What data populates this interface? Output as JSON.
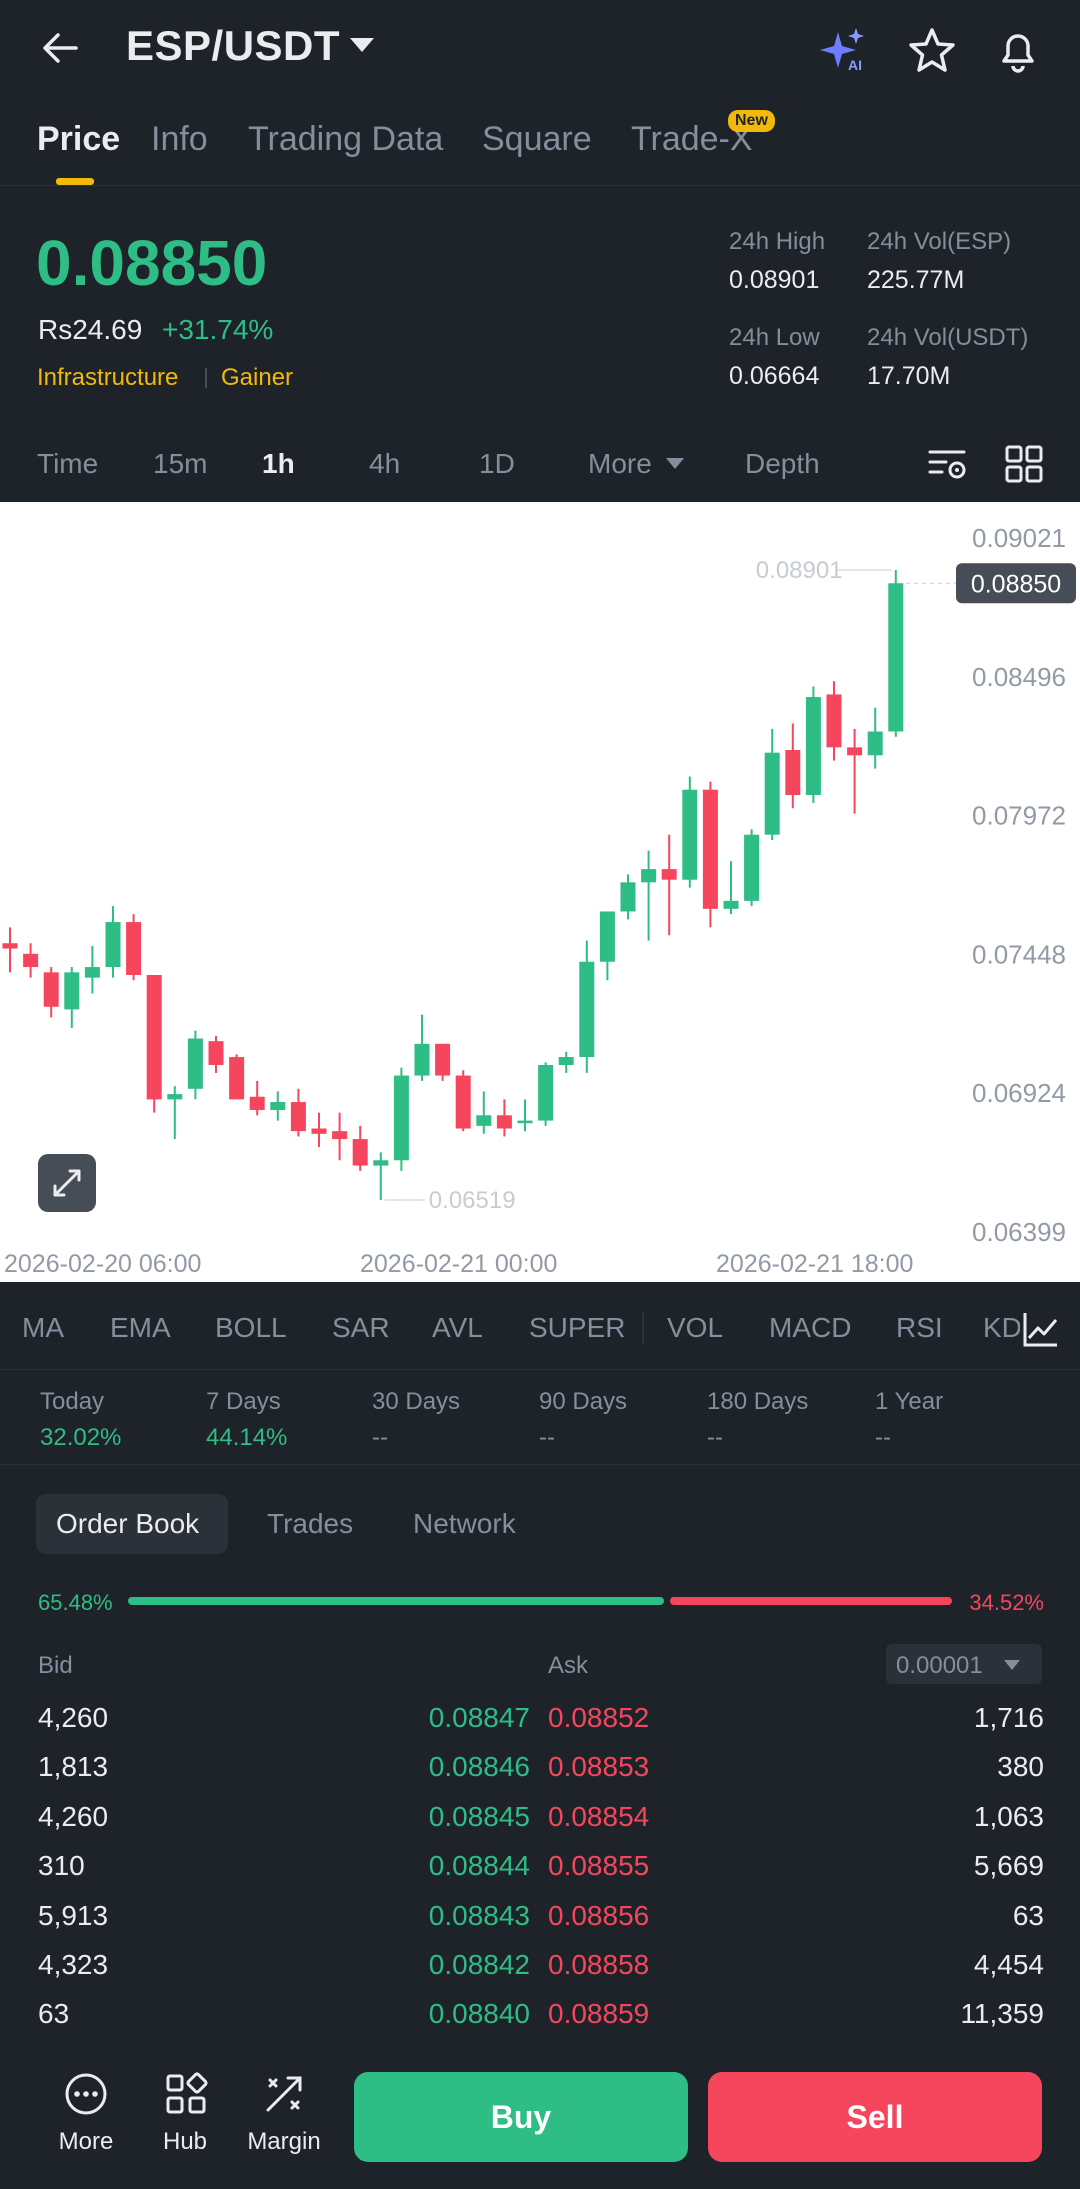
{
  "header": {
    "pair": "ESP/USDT",
    "icons": [
      "back-arrow-icon",
      "ai-sparkle-icon",
      "star-icon",
      "bell-icon"
    ]
  },
  "tabs": [
    {
      "label": "Price",
      "active": true
    },
    {
      "label": "Info"
    },
    {
      "label": "Trading Data"
    },
    {
      "label": "Square"
    },
    {
      "label": "Trade-X",
      "badge": "New"
    }
  ],
  "ticker": {
    "last_price": "0.08850",
    "fiat_price": "Rs24.69",
    "change_pct": "+31.74%",
    "tags": [
      "Infrastructure",
      "Gainer"
    ],
    "high_label": "24h High",
    "high": "0.08901",
    "vol_base_label": "24h Vol(ESP)",
    "vol_base": "225.77M",
    "low_label": "24h Low",
    "low": "0.06664",
    "vol_quote_label": "24h Vol(USDT)",
    "vol_quote": "17.70M"
  },
  "timeframes": [
    {
      "label": "Time"
    },
    {
      "label": "15m"
    },
    {
      "label": "1h",
      "active": true
    },
    {
      "label": "4h"
    },
    {
      "label": "1D"
    },
    {
      "label": "More"
    },
    {
      "label": "Depth"
    }
  ],
  "chart_data": {
    "type": "candlestick",
    "interval": "1h",
    "y_ticks": [
      "0.09021",
      "0.08496",
      "0.07972",
      "0.07448",
      "0.06924",
      "0.06399"
    ],
    "x_ticks": [
      "2026-02-20 06:00",
      "2026-02-21 00:00",
      "2026-02-21 18:00"
    ],
    "last_price_label": "0.08850",
    "high_marker": "0.08901",
    "low_marker": "0.06519",
    "ylim": [
      0.06399,
      0.09021
    ],
    "candles": [
      {
        "o": 0.0749,
        "h": 0.0755,
        "l": 0.0738,
        "c": 0.0747
      },
      {
        "o": 0.0745,
        "h": 0.0749,
        "l": 0.0736,
        "c": 0.074
      },
      {
        "o": 0.0738,
        "h": 0.074,
        "l": 0.0721,
        "c": 0.0725
      },
      {
        "o": 0.0724,
        "h": 0.074,
        "l": 0.0717,
        "c": 0.0738
      },
      {
        "o": 0.0736,
        "h": 0.0748,
        "l": 0.073,
        "c": 0.074
      },
      {
        "o": 0.074,
        "h": 0.0763,
        "l": 0.0736,
        "c": 0.0757
      },
      {
        "o": 0.0757,
        "h": 0.076,
        "l": 0.0735,
        "c": 0.0737
      },
      {
        "o": 0.0737,
        "h": 0.0737,
        "l": 0.0685,
        "c": 0.069
      },
      {
        "o": 0.069,
        "h": 0.0695,
        "l": 0.0675,
        "c": 0.0692
      },
      {
        "o": 0.0694,
        "h": 0.0716,
        "l": 0.069,
        "c": 0.0713
      },
      {
        "o": 0.0712,
        "h": 0.0714,
        "l": 0.07,
        "c": 0.0703
      },
      {
        "o": 0.0706,
        "h": 0.0707,
        "l": 0.069,
        "c": 0.069
      },
      {
        "o": 0.0691,
        "h": 0.0697,
        "l": 0.0684,
        "c": 0.0686
      },
      {
        "o": 0.0686,
        "h": 0.0693,
        "l": 0.0682,
        "c": 0.0689
      },
      {
        "o": 0.0689,
        "h": 0.0694,
        "l": 0.0676,
        "c": 0.0678
      },
      {
        "o": 0.0679,
        "h": 0.0685,
        "l": 0.0672,
        "c": 0.0677
      },
      {
        "o": 0.0678,
        "h": 0.0685,
        "l": 0.0667,
        "c": 0.0675
      },
      {
        "o": 0.0675,
        "h": 0.068,
        "l": 0.0663,
        "c": 0.0665
      },
      {
        "o": 0.0665,
        "h": 0.067,
        "l": 0.0652,
        "c": 0.0667
      },
      {
        "o": 0.0667,
        "h": 0.0702,
        "l": 0.0663,
        "c": 0.0699
      },
      {
        "o": 0.0699,
        "h": 0.0722,
        "l": 0.0697,
        "c": 0.0711
      },
      {
        "o": 0.0711,
        "h": 0.0711,
        "l": 0.0697,
        "c": 0.0699
      },
      {
        "o": 0.0699,
        "h": 0.0701,
        "l": 0.0678,
        "c": 0.0679
      },
      {
        "o": 0.068,
        "h": 0.0693,
        "l": 0.0677,
        "c": 0.0684
      },
      {
        "o": 0.0684,
        "h": 0.069,
        "l": 0.0676,
        "c": 0.0679
      },
      {
        "o": 0.0681,
        "h": 0.069,
        "l": 0.0678,
        "c": 0.0682
      },
      {
        "o": 0.0682,
        "h": 0.0704,
        "l": 0.068,
        "c": 0.0703
      },
      {
        "o": 0.0703,
        "h": 0.0708,
        "l": 0.07,
        "c": 0.0706
      },
      {
        "o": 0.0706,
        "h": 0.075,
        "l": 0.07,
        "c": 0.0742
      },
      {
        "o": 0.0742,
        "h": 0.0761,
        "l": 0.0735,
        "c": 0.0761
      },
      {
        "o": 0.0761,
        "h": 0.0775,
        "l": 0.0758,
        "c": 0.0772
      },
      {
        "o": 0.0772,
        "h": 0.0784,
        "l": 0.075,
        "c": 0.0777
      },
      {
        "o": 0.0777,
        "h": 0.079,
        "l": 0.0752,
        "c": 0.0773
      },
      {
        "o": 0.0773,
        "h": 0.0812,
        "l": 0.077,
        "c": 0.0807
      },
      {
        "o": 0.0807,
        "h": 0.081,
        "l": 0.0755,
        "c": 0.0762
      },
      {
        "o": 0.0762,
        "h": 0.078,
        "l": 0.076,
        "c": 0.0765
      },
      {
        "o": 0.0765,
        "h": 0.0792,
        "l": 0.0763,
        "c": 0.079
      },
      {
        "o": 0.079,
        "h": 0.083,
        "l": 0.0788,
        "c": 0.0821
      },
      {
        "o": 0.0822,
        "h": 0.0832,
        "l": 0.08,
        "c": 0.0805
      },
      {
        "o": 0.0805,
        "h": 0.0846,
        "l": 0.0802,
        "c": 0.0842
      },
      {
        "o": 0.0843,
        "h": 0.0848,
        "l": 0.0818,
        "c": 0.0823
      },
      {
        "o": 0.0823,
        "h": 0.083,
        "l": 0.0798,
        "c": 0.082
      },
      {
        "o": 0.082,
        "h": 0.0838,
        "l": 0.0815,
        "c": 0.0829
      },
      {
        "o": 0.0829,
        "h": 0.089,
        "l": 0.0827,
        "c": 0.0885
      }
    ]
  },
  "indicators": [
    "MA",
    "EMA",
    "BOLL",
    "SAR",
    "AVL",
    "SUPER",
    "VOL",
    "MACD",
    "RSI",
    "KD"
  ],
  "performance": [
    {
      "label": "Today",
      "value": "32.02%"
    },
    {
      "label": "7 Days",
      "value": "44.14%"
    },
    {
      "label": "30 Days",
      "value": "--"
    },
    {
      "label": "90 Days",
      "value": "--"
    },
    {
      "label": "180 Days",
      "value": "--"
    },
    {
      "label": "1 Year",
      "value": "--"
    }
  ],
  "orderbook": {
    "tabs": [
      "Order Book",
      "Trades",
      "Network"
    ],
    "bid_ratio": "65.48%",
    "ask_ratio": "34.52%",
    "bid_header": "Bid",
    "ask_header": "Ask",
    "precision": "0.00001",
    "rows": [
      {
        "bid_qty": "4,260",
        "bid_price": "0.08847",
        "ask_price": "0.08852",
        "ask_qty": "1,716"
      },
      {
        "bid_qty": "1,813",
        "bid_price": "0.08846",
        "ask_price": "0.08853",
        "ask_qty": "380"
      },
      {
        "bid_qty": "4,260",
        "bid_price": "0.08845",
        "ask_price": "0.08854",
        "ask_qty": "1,063"
      },
      {
        "bid_qty": "310",
        "bid_price": "0.08844",
        "ask_price": "0.08855",
        "ask_qty": "5,669"
      },
      {
        "bid_qty": "5,913",
        "bid_price": "0.08843",
        "ask_price": "0.08856",
        "ask_qty": "63"
      },
      {
        "bid_qty": "4,323",
        "bid_price": "0.08842",
        "ask_price": "0.08858",
        "ask_qty": "4,454"
      },
      {
        "bid_qty": "63",
        "bid_price": "0.08840",
        "ask_price": "0.08859",
        "ask_qty": "11,359"
      }
    ]
  },
  "bottom": {
    "nav": [
      {
        "label": "More",
        "icon": "more-dots-icon"
      },
      {
        "label": "Hub",
        "icon": "hub-grid-icon"
      },
      {
        "label": "Margin",
        "icon": "margin-icon"
      }
    ],
    "buy": "Buy",
    "sell": "Sell"
  },
  "colors": {
    "up": "#2ebd85",
    "down": "#f6465d",
    "accent": "#f0b90b",
    "bg": "#1e2329"
  }
}
